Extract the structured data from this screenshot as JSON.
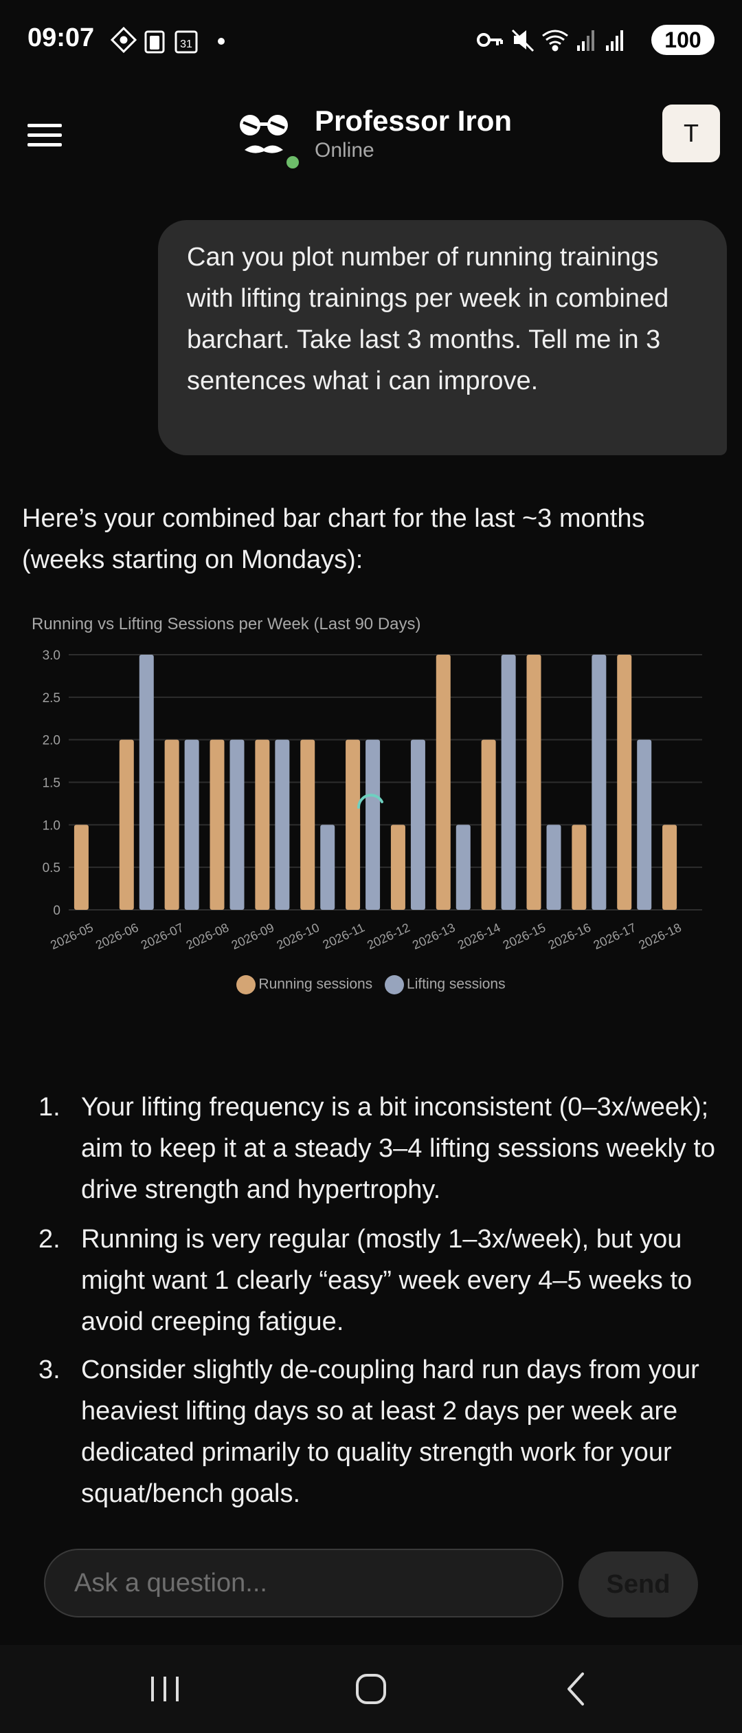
{
  "status_bar": {
    "time": "09:07",
    "battery": "100",
    "icons_left": [
      "navigation-diamond-icon",
      "clipboard-icon",
      "calendar-31-icon",
      "dot-icon"
    ],
    "icons_right": [
      "key-icon",
      "mute-icon",
      "wifi-icon",
      "signal-icon",
      "signal-icon"
    ]
  },
  "header": {
    "bot_name": "Professor Iron",
    "bot_status": "Online",
    "user_initial": "T",
    "online_color": "#6dbd6a"
  },
  "user_message": "Can you plot number of running trainings with lifting trainings per week in combined barchart. Take last 3 months. Tell me in 3 sentences what i can improve.",
  "assistant": {
    "intro": "Here’s your combined bar chart for the last ~3 months (weeks starting on Mondays):",
    "tips": [
      {
        "num": "1.",
        "text": "Your lifting frequency is a bit inconsistent (0–3x/week); aim to keep it at a steady 3–4 lifting sessions weekly to drive strength and hypertrophy."
      },
      {
        "num": "2.",
        "text": "Running is very regular (mostly 1–3x/week), but you might want 1 clearly “easy” week every 4–5 weeks to avoid creeping fatigue."
      },
      {
        "num": "3.",
        "text": "Consider slightly de-coupling hard run days from your heaviest lifting days so at least 2 days per week are dedicated primarily to quality strength work for your squat/bench goals."
      }
    ]
  },
  "chart_data": {
    "type": "bar",
    "title": "Running vs Lifting Sessions per Week (Last 90 Days)",
    "categories": [
      "2026-05",
      "2026-06",
      "2026-07",
      "2026-08",
      "2026-09",
      "2026-10",
      "2026-11",
      "2026-12",
      "2026-13",
      "2026-14",
      "2026-15",
      "2026-16",
      "2026-17",
      "2026-18"
    ],
    "series": [
      {
        "name": "Running sessions",
        "color": "#d4a574",
        "values": [
          1,
          2,
          2,
          2,
          2,
          2,
          2,
          1,
          3,
          2,
          3,
          1,
          3,
          1
        ]
      },
      {
        "name": "Lifting sessions",
        "color": "#97a4bd",
        "values": [
          0,
          3,
          2,
          2,
          2,
          1,
          2,
          2,
          1,
          3,
          1,
          3,
          2,
          0
        ]
      }
    ],
    "ylim": [
      0,
      3
    ],
    "yticks": [
      "0",
      "0.5",
      "1.0",
      "1.5",
      "2.0",
      "2.5",
      "3.0"
    ],
    "grid": true,
    "legend_position": "bottom"
  },
  "input": {
    "placeholder": "Ask a question...",
    "value": ""
  },
  "send_label": "Send"
}
